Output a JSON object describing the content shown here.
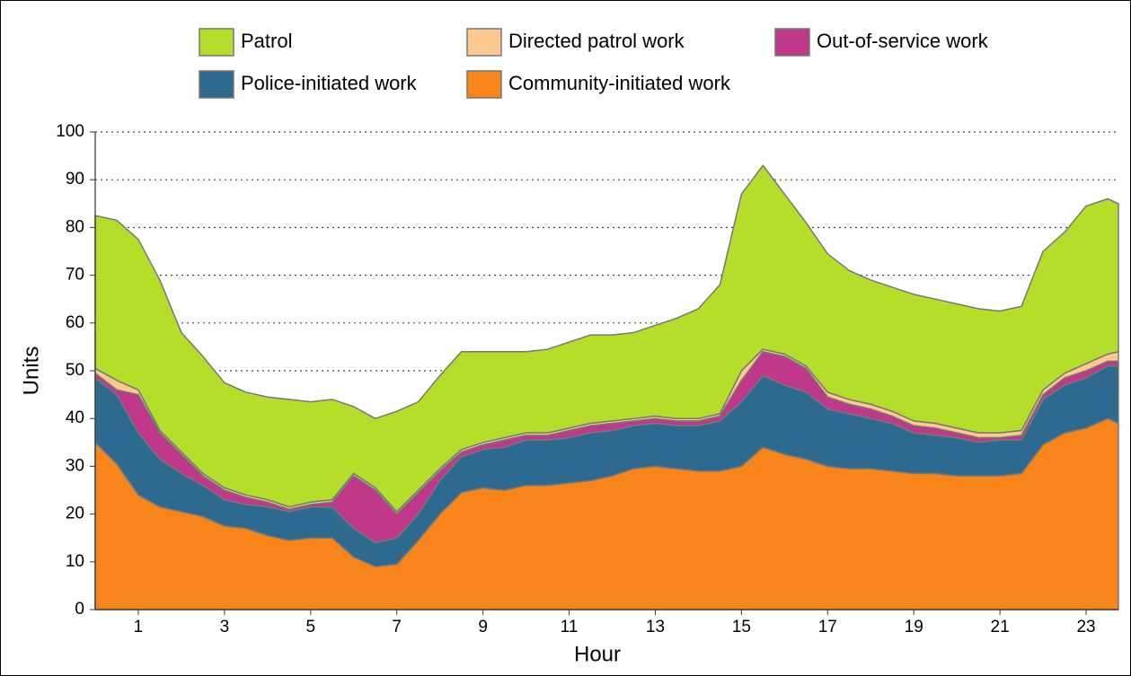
{
  "chart_data": {
    "type": "stacked_area",
    "x_label": "Hour",
    "y_label": "Units",
    "x": [
      0,
      0.5,
      1,
      1.5,
      2,
      2.5,
      3,
      3.5,
      4,
      4.5,
      5,
      5.5,
      6,
      6.5,
      7,
      7.5,
      8,
      8.5,
      9,
      9.5,
      10,
      10.5,
      11,
      11.5,
      12,
      12.5,
      13,
      13.5,
      14,
      14.5,
      15,
      15.5,
      16,
      16.5,
      17,
      17.5,
      18,
      18.5,
      19,
      19.5,
      20,
      20.5,
      21,
      21.5,
      22,
      22.5,
      23,
      23.5,
      23.75
    ],
    "series": [
      {
        "name": "Community-initiated work",
        "color": "#f7851a",
        "values": [
          35,
          30.5,
          24,
          21.5,
          20.5,
          19.5,
          17.5,
          17,
          15.5,
          14.5,
          15,
          15,
          11,
          9,
          9.5,
          14.5,
          20,
          24.5,
          25.5,
          25,
          26,
          26,
          26.5,
          27,
          28,
          29.5,
          30,
          29.5,
          29,
          29,
          30,
          34,
          32.5,
          31.5,
          30,
          29.5,
          29.5,
          29,
          28.5,
          28.5,
          28,
          28,
          28,
          28.5,
          34.5,
          37,
          38,
          40,
          39
        ]
      },
      {
        "name": "Police-initiated work",
        "color": "#2e6a90",
        "values": [
          13.5,
          14.5,
          13,
          10,
          8,
          6.5,
          5.5,
          5,
          6,
          6,
          6.5,
          6.5,
          6,
          5,
          5.5,
          5.5,
          7,
          7.5,
          8,
          9,
          9.5,
          9.5,
          9.5,
          10,
          9.5,
          9,
          9,
          9,
          9.5,
          10.5,
          13.5,
          15,
          14.5,
          14,
          12,
          11.5,
          10.5,
          10,
          8.5,
          8,
          8,
          7,
          7.5,
          7,
          9.5,
          10,
          10.5,
          11,
          12
        ]
      },
      {
        "name": "Out-of-service work",
        "color": "#c0388a",
        "values": [
          1,
          1,
          8,
          5.5,
          4,
          2,
          2,
          1.5,
          1,
          0.5,
          0.5,
          1,
          11,
          11,
          5,
          4.5,
          2,
          1,
          1,
          1.5,
          1,
          1,
          1.5,
          1.5,
          1.5,
          1,
          1,
          1,
          1,
          1,
          4.5,
          5,
          6,
          5,
          2.5,
          2,
          2,
          1.5,
          1.5,
          1.5,
          1,
          1,
          0.5,
          1,
          1,
          1.5,
          1.5,
          1,
          1
        ]
      },
      {
        "name": "Directed patrol work",
        "color": "#fdc98f",
        "values": [
          1,
          2,
          1,
          0.5,
          0.5,
          0.5,
          0.5,
          0.5,
          0.5,
          0.5,
          0.5,
          0.5,
          0.5,
          0.5,
          0.5,
          0.5,
          0.5,
          0.5,
          0.5,
          0.5,
          0.5,
          0.5,
          0.5,
          0.5,
          0.5,
          0.5,
          0.5,
          0.5,
          0.5,
          0.5,
          2,
          0.5,
          0.5,
          0.5,
          1,
          1,
          1,
          1,
          1,
          1,
          1,
          1,
          1,
          1,
          1,
          1,
          1.5,
          1.5,
          2
        ]
      },
      {
        "name": "Patrol",
        "color": "#b5de2b",
        "values": [
          32,
          33.5,
          31.5,
          31.5,
          25,
          24.5,
          22,
          21.5,
          21.5,
          22.5,
          21,
          21,
          14,
          14.5,
          21,
          18.5,
          19.5,
          20.5,
          19,
          18,
          17,
          17.5,
          18,
          18.5,
          18,
          18,
          19,
          21,
          23,
          27,
          37,
          38.5,
          33.5,
          30,
          29,
          27,
          26,
          26,
          26.5,
          26,
          26,
          26,
          25.5,
          26,
          29,
          29.5,
          33,
          32.5,
          31
        ]
      }
    ],
    "xlim": [
      0,
      23.75
    ],
    "xticks": [
      1,
      3,
      5,
      7,
      9,
      11,
      13,
      15,
      17,
      19,
      21,
      23
    ],
    "ylim": [
      0,
      100
    ],
    "yticks": [
      0,
      10,
      20,
      30,
      40,
      50,
      60,
      70,
      80,
      90,
      100
    ],
    "grid": true,
    "legend_position": "top"
  }
}
